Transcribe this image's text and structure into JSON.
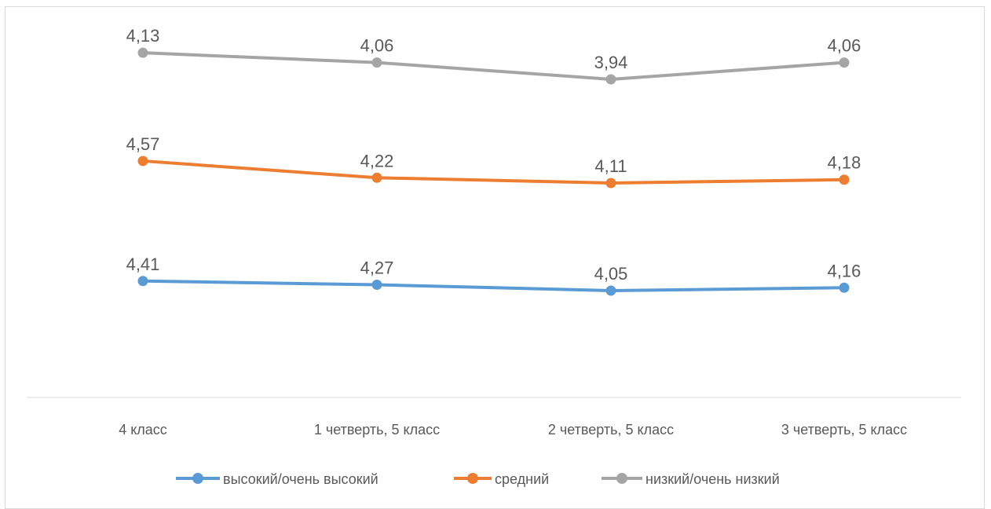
{
  "chart_data": {
    "type": "line",
    "title": "",
    "xlabel": "",
    "ylabel": "",
    "categories": [
      "4 класс",
      "1 четверть, 5 класс",
      "2 четверть, 5 класс",
      "3 четверть, 5 класс"
    ],
    "series": [
      {
        "name": "высокий/очень высокий",
        "color": "#5b9bd5",
        "values": [
          4.41,
          4.27,
          4.05,
          4.16
        ],
        "labels": [
          "4,41",
          "4,27",
          "4,05",
          "4,16"
        ]
      },
      {
        "name": "средний",
        "color": "#ed7d31",
        "values": [
          4.57,
          4.22,
          4.11,
          4.18
        ],
        "labels": [
          "4,57",
          "4,22",
          "4,11",
          "4,18"
        ]
      },
      {
        "name": "низкий/очень низкий",
        "color": "#a5a5a5",
        "values": [
          4.13,
          4.06,
          3.94,
          4.06
        ],
        "labels": [
          "4,13",
          "4,06",
          "3,94",
          "4,06"
        ]
      }
    ],
    "grid": false,
    "legend_position": "bottom"
  }
}
